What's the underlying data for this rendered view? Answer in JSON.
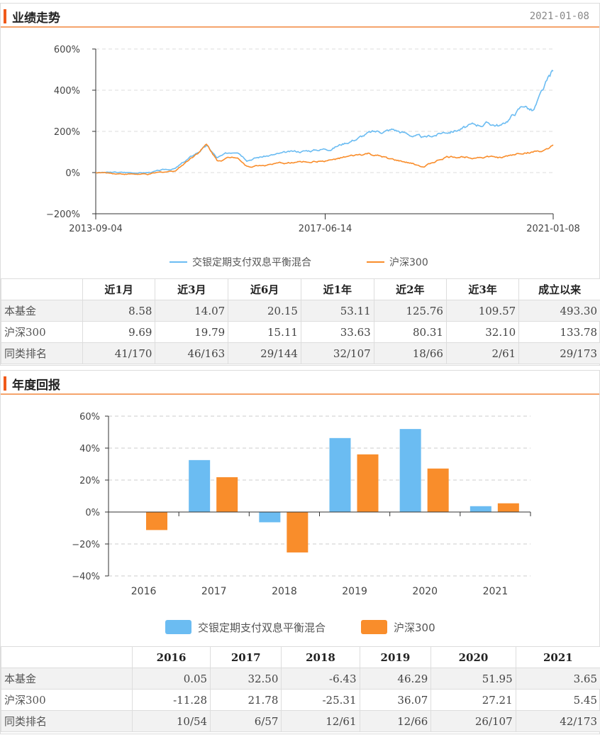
{
  "perf": {
    "title": "业绩走势",
    "date": "2021-01-08",
    "legend": [
      "交银定期支付双息平衡混合",
      "沪深300"
    ],
    "table": {
      "headers": [
        "",
        "近1月",
        "近3月",
        "近6月",
        "近1年",
        "近2年",
        "近3年",
        "成立以来"
      ],
      "rows": [
        [
          "本基金",
          "8.58",
          "14.07",
          "20.15",
          "53.11",
          "125.76",
          "109.57",
          "493.30"
        ],
        [
          "沪深300",
          "9.69",
          "19.79",
          "15.11",
          "33.63",
          "80.31",
          "32.10",
          "133.78"
        ],
        [
          "同类排名",
          "41/170",
          "46/163",
          "29/144",
          "32/107",
          "18/66",
          "2/61",
          "29/173"
        ]
      ]
    }
  },
  "annual": {
    "title": "年度回报",
    "table": {
      "headers": [
        "",
        "2016",
        "2017",
        "2018",
        "2019",
        "2020",
        "2021"
      ],
      "rows": [
        [
          "本基金",
          "0.05",
          "32.50",
          "-6.43",
          "46.29",
          "51.95",
          "3.65"
        ],
        [
          "沪深300",
          "-11.28",
          "21.78",
          "-25.31",
          "36.07",
          "27.21",
          "5.45"
        ],
        [
          "同类排名",
          "10/54",
          "6/57",
          "12/61",
          "12/66",
          "26/107",
          "42/173"
        ]
      ]
    }
  },
  "colors": {
    "fund": "#6bbcf2",
    "index": "#f98d2b",
    "accent": "#f05a1a"
  },
  "chart_data": [
    {
      "type": "line",
      "title": "业绩走势",
      "ylim": [
        -200,
        600
      ],
      "yticks": [
        -200,
        0,
        200,
        400,
        600
      ],
      "ytick_labels": [
        "−200%",
        "0%",
        "200%",
        "400%",
        "600%"
      ],
      "xtick_labels": [
        "2013-09-04",
        "2017-06-14",
        "2021-01-08"
      ],
      "xlim_years": [
        2013.67,
        2021.02
      ],
      "series": [
        {
          "name": "交银定期支付双息平衡混合",
          "points": [
            [
              2013.67,
              0
            ],
            [
              2014.5,
              0
            ],
            [
              2014.95,
              20
            ],
            [
              2015.45,
              130
            ],
            [
              2015.62,
              70
            ],
            [
              2015.95,
              110
            ],
            [
              2016.1,
              70
            ],
            [
              2016.9,
              100
            ],
            [
              2017.45,
              120
            ],
            [
              2018.05,
              190
            ],
            [
              2018.45,
              210
            ],
            [
              2018.95,
              165
            ],
            [
              2019.3,
              200
            ],
            [
              2019.95,
              240
            ],
            [
              2020.2,
              230
            ],
            [
              2020.55,
              330
            ],
            [
              2020.7,
              300
            ],
            [
              2020.95,
              450
            ],
            [
              2021.02,
              493
            ]
          ]
        },
        {
          "name": "沪深300",
          "points": [
            [
              2013.67,
              0
            ],
            [
              2014.5,
              -10
            ],
            [
              2014.95,
              10
            ],
            [
              2015.45,
              135
            ],
            [
              2015.62,
              60
            ],
            [
              2015.95,
              80
            ],
            [
              2016.1,
              30
            ],
            [
              2016.9,
              50
            ],
            [
              2017.45,
              60
            ],
            [
              2018.05,
              90
            ],
            [
              2018.45,
              60
            ],
            [
              2018.95,
              30
            ],
            [
              2019.3,
              75
            ],
            [
              2019.95,
              80
            ],
            [
              2020.2,
              70
            ],
            [
              2020.55,
              100
            ],
            [
              2020.95,
              105
            ],
            [
              2021.02,
              134
            ]
          ]
        }
      ]
    },
    {
      "type": "bar",
      "title": "年度回报",
      "categories": [
        "2016",
        "2017",
        "2018",
        "2019",
        "2020",
        "2021"
      ],
      "ylim": [
        -40,
        60
      ],
      "yticks": [
        -40,
        -20,
        0,
        20,
        40,
        60
      ],
      "ytick_labels": [
        "−40%",
        "−20%",
        "0%",
        "20%",
        "40%",
        "60%"
      ],
      "series": [
        {
          "name": "交银定期支付双息平衡混合",
          "values": [
            0.05,
            32.5,
            -6.43,
            46.29,
            51.95,
            3.65
          ]
        },
        {
          "name": "沪深300",
          "values": [
            -11.28,
            21.78,
            -25.31,
            36.07,
            27.21,
            5.45
          ]
        }
      ]
    }
  ]
}
